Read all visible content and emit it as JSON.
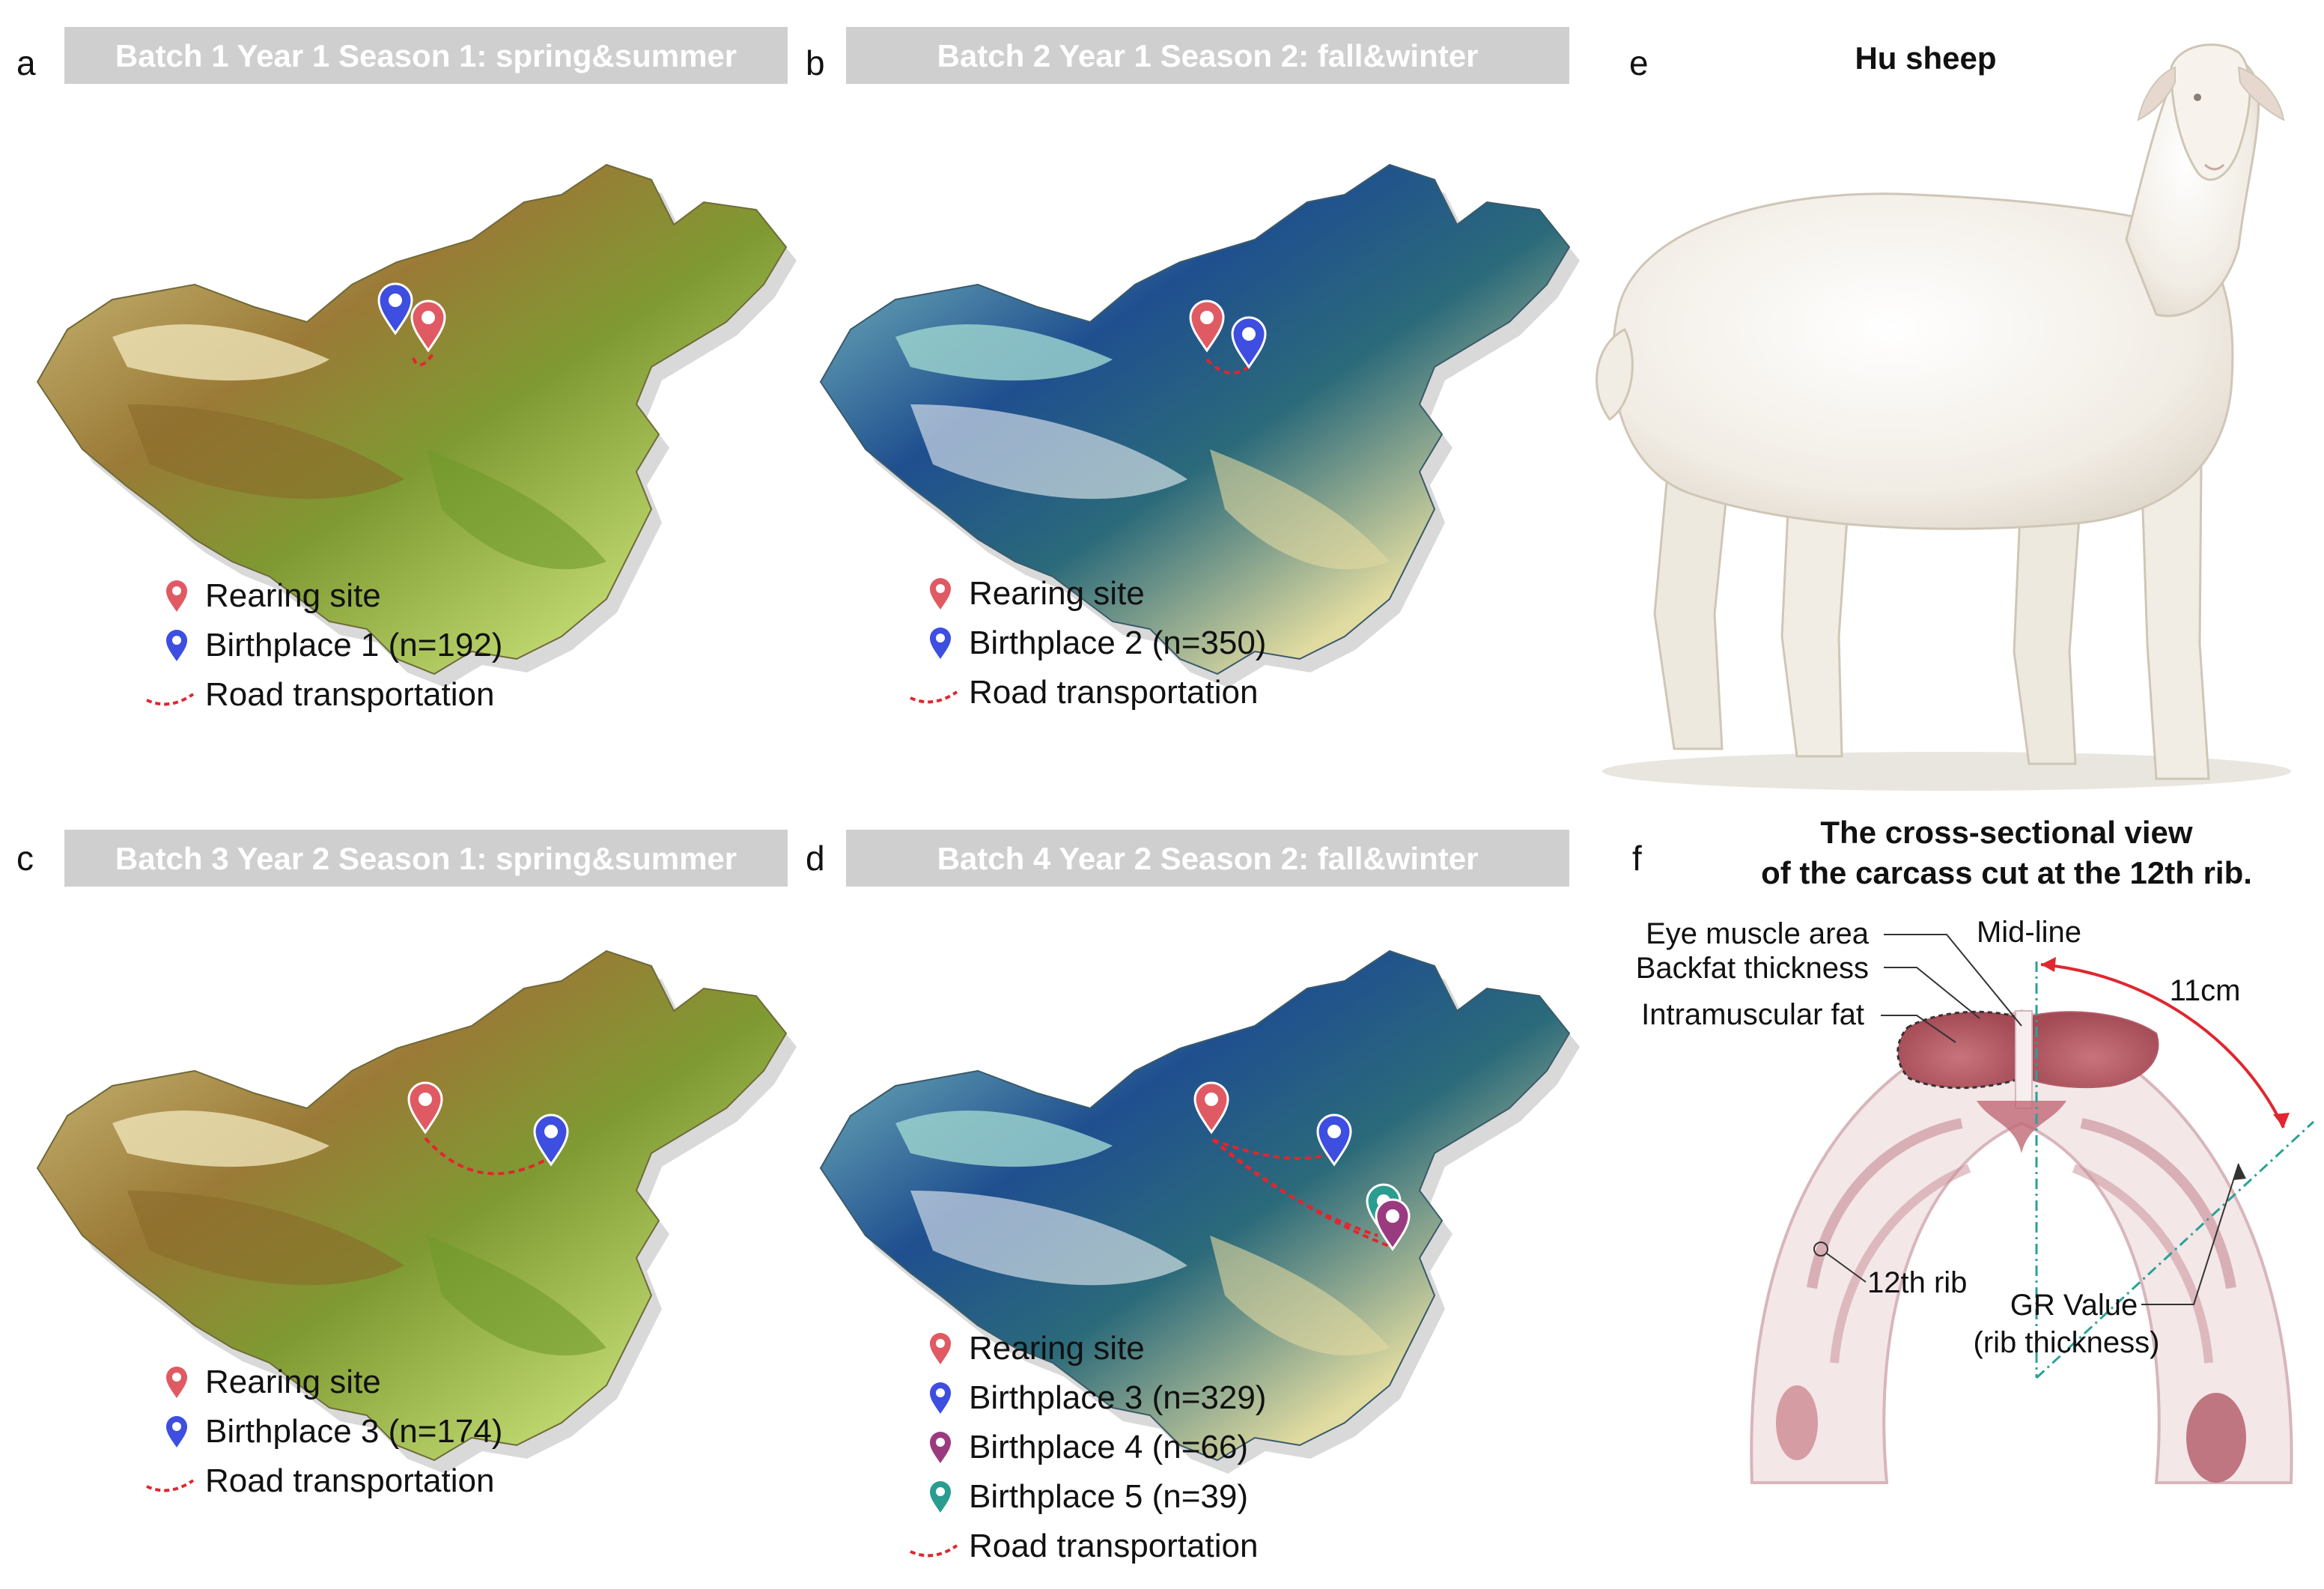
{
  "panels": {
    "a": {
      "letter": "a",
      "title": "Batch 1 Year 1 Season 1:  spring&summer",
      "legend": [
        {
          "kind": "pin",
          "color": "#e05a63",
          "label": "Rearing site"
        },
        {
          "kind": "pin",
          "color": "#3d4ee0",
          "label": "Birthplace 1 (n=192)"
        },
        {
          "kind": "route",
          "color": "#e0262f",
          "label": "Road transportation"
        }
      ]
    },
    "b": {
      "letter": "b",
      "title": "Batch 2 Year 1 Season 2: fall&winter",
      "legend": [
        {
          "kind": "pin",
          "color": "#e05a63",
          "label": "Rearing site"
        },
        {
          "kind": "pin",
          "color": "#3d4ee0",
          "label": "Birthplace 2 (n=350)"
        },
        {
          "kind": "route",
          "color": "#e0262f",
          "label": "Road transportation"
        }
      ]
    },
    "c": {
      "letter": "c",
      "title": "Batch 3 Year 2 Season 1: spring&summer",
      "legend": [
        {
          "kind": "pin",
          "color": "#e05a63",
          "label": "Rearing site"
        },
        {
          "kind": "pin",
          "color": "#3d4ee0",
          "label": "Birthplace 3 (n=174)"
        },
        {
          "kind": "route",
          "color": "#e0262f",
          "label": "Road transportation"
        }
      ]
    },
    "d": {
      "letter": "d",
      "title": "Batch 4 Year 2 Season 2: fall&winter",
      "legend": [
        {
          "kind": "pin",
          "color": "#e05a63",
          "label": "Rearing site"
        },
        {
          "kind": "pin",
          "color": "#3d4ee0",
          "label": "Birthplace 3 (n=329)"
        },
        {
          "kind": "pin",
          "color": "#9b3b7f",
          "label": "Birthplace 4 (n=66)"
        },
        {
          "kind": "pin",
          "color": "#2a9d8f",
          "label": "Birthplace 5 (n=39)"
        },
        {
          "kind": "route",
          "color": "#e0262f",
          "label": "Road transportation"
        }
      ]
    },
    "e": {
      "letter": "e",
      "title": "Hu sheep"
    },
    "f": {
      "letter": "f",
      "title_line1": "The cross-sectional view",
      "title_line2": "of the carcass cut at the 12th rib.",
      "labels": {
        "eye_muscle": "Eye muscle area",
        "backfat": "Backfat thickness",
        "intramuscular": "Intramuscular fat",
        "midline": "Mid-line",
        "distance": "11cm",
        "rib": "12th rib",
        "gr_line1": "GR Value",
        "gr_line2": "(rib thickness)"
      }
    }
  },
  "colors": {
    "banner": "#cfcfcf",
    "rearing": "#e05a63",
    "birthplace": "#3d4ee0",
    "birthplace4": "#9b3b7f",
    "birthplace5": "#2a9d8f",
    "route": "#e0262f",
    "midline": "#2aa198"
  }
}
